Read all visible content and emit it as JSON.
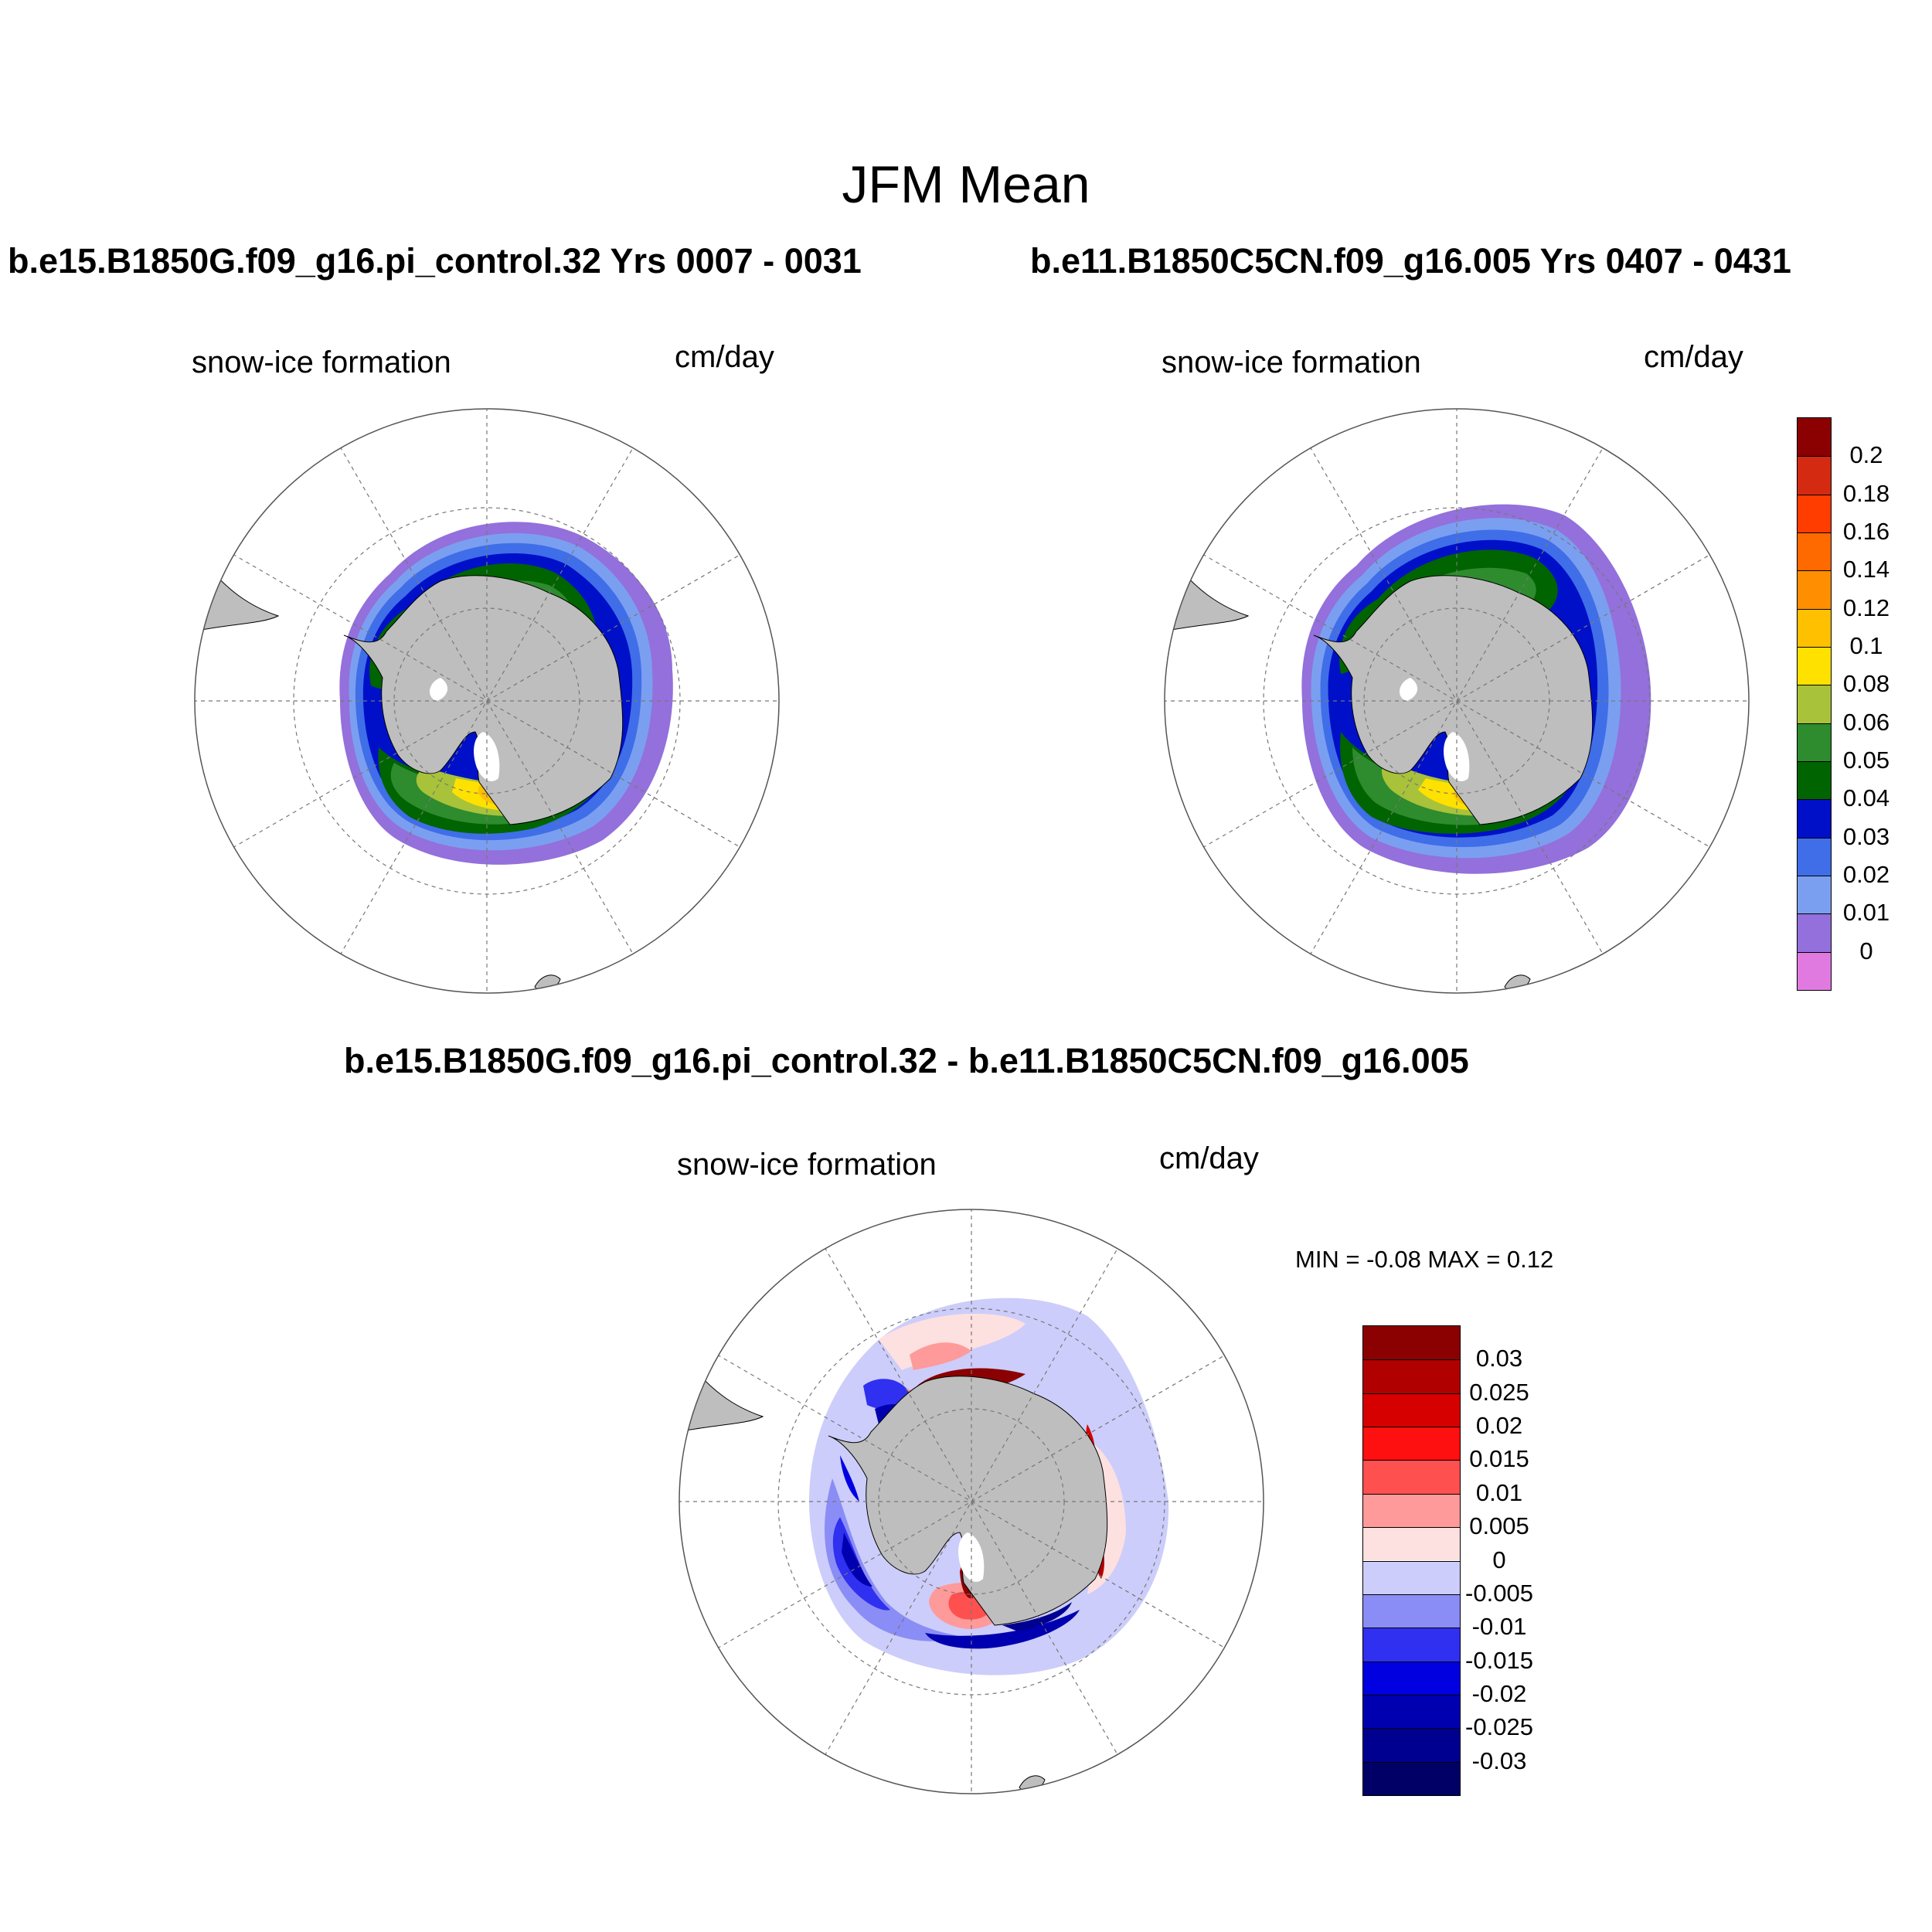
{
  "figure": {
    "title": "JFM Mean"
  },
  "panels": [
    {
      "case_title": "b.e15.B1850G.f09_g16.pi_control.32  Yrs 0007 - 0031",
      "variable": "snow-ice formation",
      "units": "cm/day"
    },
    {
      "case_title": "b.e11.B1850C5CN.f09_g16.005  Yrs 0407 - 0431",
      "variable": "snow-ice formation",
      "units": "cm/day"
    },
    {
      "case_title": "b.e15.B1850G.f09_g16.pi_control.32 - b.e11.B1850C5CN.f09_g16.005",
      "variable": "snow-ice formation",
      "units": "cm/day",
      "minmax": "MIN =  -0.08 MAX =   0.12"
    }
  ],
  "colorbar_top": {
    "labels": [
      "0.2",
      "0.18",
      "0.16",
      "0.14",
      "0.12",
      "0.1",
      "0.08",
      "0.06",
      "0.05",
      "0.04",
      "0.03",
      "0.02",
      "0.01",
      "0"
    ],
    "colors": [
      "#8b0000",
      "#d42a12",
      "#ff3d00",
      "#ff6a00",
      "#ff8f00",
      "#ffc000",
      "#ffe100",
      "#a8c23a",
      "#2e8b2e",
      "#006400",
      "#0010c8",
      "#3f6ee8",
      "#7b9ff0",
      "#9370db",
      "#e07ae0"
    ]
  },
  "colorbar_diff": {
    "labels": [
      "0.03",
      "0.025",
      "0.02",
      "0.015",
      "0.01",
      "0.005",
      "0",
      "-0.005",
      "-0.01",
      "-0.015",
      "-0.02",
      "-0.025",
      "-0.03"
    ],
    "colors": [
      "#8b0000",
      "#b00000",
      "#d60000",
      "#ff1010",
      "#ff5050",
      "#ff9a9a",
      "#fde0e0",
      "#cccdfa",
      "#8a8df5",
      "#3030f0",
      "#0000e0",
      "#0000b0",
      "#000090",
      "#000066"
    ]
  }
}
